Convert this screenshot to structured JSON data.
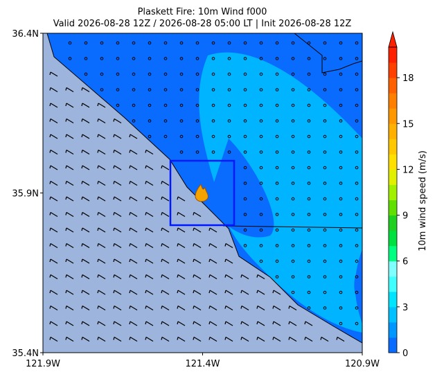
{
  "title": [
    "Plaskett Fire: 10m Wind f000",
    "Valid 2026-08-28 12Z / 2026-08-28 05:00 LT | Init 2026-08-28 12Z"
  ],
  "map": {
    "xlim": [
      -121.9,
      -120.9
    ],
    "ylim": [
      35.4,
      36.4
    ],
    "xticks": [
      {
        "value": -121.9,
        "label": "121.9W"
      },
      {
        "value": -121.4,
        "label": "121.4W"
      },
      {
        "value": -120.9,
        "label": "120.9W"
      }
    ],
    "yticks": [
      {
        "value": 35.4,
        "label": "35.4N"
      },
      {
        "value": 35.9,
        "label": "35.9N"
      },
      {
        "value": 36.4,
        "label": "36.4N"
      }
    ]
  },
  "colorbar": {
    "label": "10m wind speed (m/s)",
    "lim": [
      0,
      20
    ],
    "ticks": [
      0,
      3,
      6,
      9,
      12,
      15,
      18
    ],
    "colors": [
      "#0a6cff",
      "#0096ff",
      "#00c0ff",
      "#00e4ff",
      "#40ffff",
      "#80ffff",
      "#00ff80",
      "#00e040",
      "#20d020",
      "#60e000",
      "#a0f000",
      "#e0f000",
      "#ffe000",
      "#ffc800",
      "#ffb000",
      "#ff9800",
      "#ff8000",
      "#ff6000",
      "#ff4000",
      "#ff2000"
    ]
  }
}
